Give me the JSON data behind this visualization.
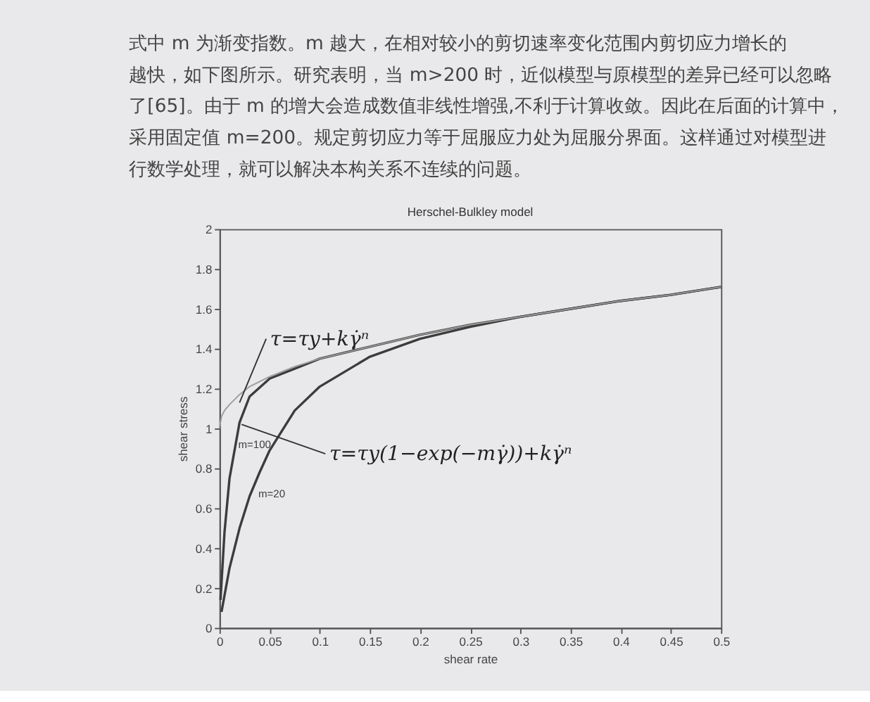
{
  "chart_data": {
    "type": "line",
    "title": "Herschel-Bulkley model",
    "xlabel": "shear rate",
    "ylabel": "shear stress",
    "xlim": [
      0,
      0.5
    ],
    "ylim": [
      0,
      2
    ],
    "xticks": [
      0,
      0.05,
      0.1,
      0.15,
      0.2,
      0.25,
      0.3,
      0.35,
      0.4,
      0.45,
      0.5
    ],
    "yticks": [
      0,
      0.2,
      0.4,
      0.6,
      0.8,
      1,
      1.2,
      1.4,
      1.6,
      1.8,
      2
    ],
    "grid": false,
    "marker": "none",
    "line_style": "solid",
    "series": [
      {
        "color": "#9c9c9c",
        "x": [
          0,
          0.002,
          0.005,
          0.01,
          0.02,
          0.03,
          0.05,
          0.075,
          0.1,
          0.15,
          0.2,
          0.25,
          0.3,
          0.35,
          0.4,
          0.45,
          0.5
        ],
        "values": [
          1.0,
          1.06,
          1.09,
          1.12,
          1.17,
          1.21,
          1.26,
          1.31,
          1.35,
          1.41,
          1.47,
          1.52,
          1.56,
          1.6,
          1.64,
          1.67,
          1.71
        ]
      },
      {
        "name": "m=100",
        "color": "#3c3c3c",
        "x": [
          0.001,
          0.005,
          0.01,
          0.02,
          0.03,
          0.05,
          0.075,
          0.1,
          0.15,
          0.2,
          0.25,
          0.3,
          0.35,
          0.4,
          0.45,
          0.5
        ],
        "values": [
          0.14,
          0.48,
          0.75,
          1.03,
          1.16,
          1.25,
          1.3,
          1.35,
          1.41,
          1.47,
          1.52,
          1.56,
          1.6,
          1.64,
          1.67,
          1.71
        ]
      },
      {
        "name": "m=20",
        "color": "#3c3c3c",
        "x": [
          0.002,
          0.01,
          0.02,
          0.03,
          0.04,
          0.05,
          0.075,
          0.1,
          0.15,
          0.2,
          0.25,
          0.3,
          0.35,
          0.4,
          0.45,
          0.5
        ],
        "values": [
          0.08,
          0.3,
          0.5,
          0.66,
          0.78,
          0.89,
          1.09,
          1.21,
          1.36,
          1.45,
          1.51,
          1.56,
          1.6,
          1.64,
          1.67,
          1.71
        ]
      }
    ],
    "annotations": [
      "式中 m 为渐变指数。m 越大，在相对较小的剪切速率变化范围内剪切应力增长的",
      "越快，如下图所示。研究表明，当 m>200 时，近似模型与原模型的差异已经可以忽略",
      "了[65]。由于 m 的增大会造成数值非线性增强,不利于计算收敛。因此在后面的计算中，",
      "采用固定值 m=200。规定剪切应力等于屈服应力处为屈服分界面。这样通过对模型进",
      "行数学处理，就可以解决本构关系不连续的问题。",
      {
        "text": "τ=τy+kγ̇ⁿ",
        "x": 0.02,
        "y": 1.13
      },
      {
        "text": "τ=τy(1−exp(−mγ̇))+kγ̇ⁿ",
        "x": 0.022,
        "y": 1.02
      }
    ]
  }
}
